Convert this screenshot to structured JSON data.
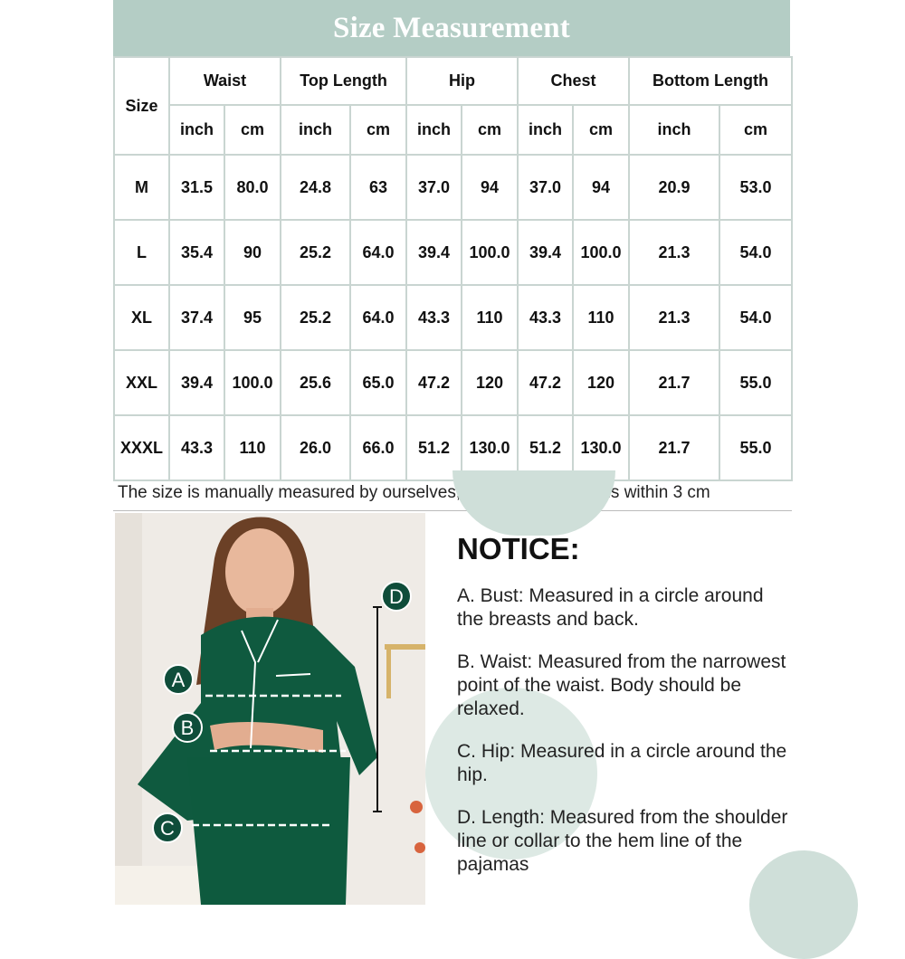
{
  "title": "Size Measurement",
  "table": {
    "size_header": "Size",
    "groups": [
      "Waist",
      "Top Length",
      "Hip",
      "Chest",
      "Bottom Length"
    ],
    "units": [
      "inch",
      "cm"
    ],
    "rows": [
      {
        "size": "M",
        "values": [
          "31.5",
          "80.0",
          "24.8",
          "63",
          "37.0",
          "94",
          "37.0",
          "94",
          "20.9",
          "53.0"
        ]
      },
      {
        "size": "L",
        "values": [
          "35.4",
          "90",
          "25.2",
          "64.0",
          "39.4",
          "100.0",
          "39.4",
          "100.0",
          "21.3",
          "54.0"
        ]
      },
      {
        "size": "XL",
        "values": [
          "37.4",
          "95",
          "25.2",
          "64.0",
          "43.3",
          "110",
          "43.3",
          "110",
          "21.3",
          "54.0"
        ]
      },
      {
        "size": "XXL",
        "values": [
          "39.4",
          "100.0",
          "25.6",
          "65.0",
          "47.2",
          "120",
          "47.2",
          "120",
          "21.7",
          "55.0"
        ]
      },
      {
        "size": "XXXL",
        "values": [
          "43.3",
          "110",
          "26.0",
          "66.0",
          "51.2",
          "130.0",
          "51.2",
          "130.0",
          "21.7",
          "55.0"
        ]
      }
    ]
  },
  "footnote": "The size is manually measured by ourselves, and the data error is within 3 cm",
  "photo": {
    "markers": [
      "A",
      "B",
      "C",
      "D"
    ]
  },
  "notice": {
    "heading": "NOTICE:",
    "items": [
      "A. Bust: Measured in a circle around the breasts and back.",
      "B. Waist: Measured from the narrowest point of the waist. Body should be relaxed.",
      "C. Hip: Measured in a circle around the hip.",
      "D. Length: Measured from the shoulder line or collar to the hem line of the pajamas"
    ]
  },
  "colors": {
    "banner": "#b4cdc5",
    "border": "#c9d5d1",
    "pajama_green": "#0f5a3f",
    "marker": "#0f4d3a"
  }
}
